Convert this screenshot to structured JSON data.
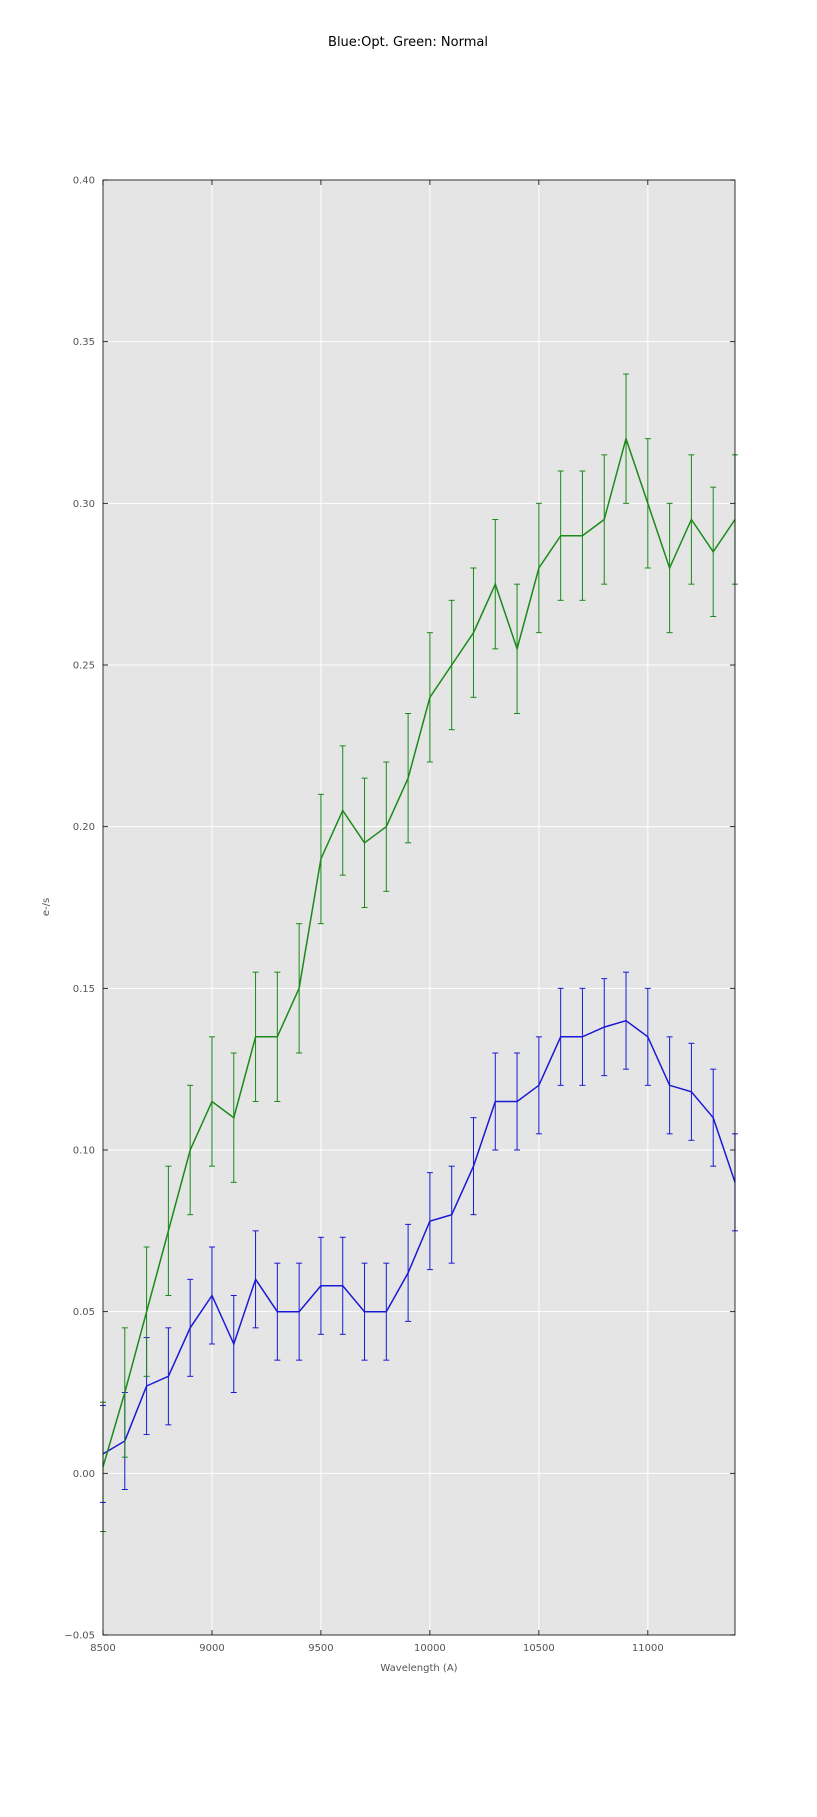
{
  "chart_data": {
    "type": "line",
    "title": "Blue:Opt. Green: Normal",
    "xlabel": "Wavelength (A)",
    "ylabel": "e-/s",
    "xlim": [
      8500,
      11400
    ],
    "ylim": [
      -0.05,
      0.4
    ],
    "xticks": [
      8500,
      9000,
      9500,
      10000,
      10500,
      11000
    ],
    "yticks": [
      "−0.05",
      "0.00",
      "0.05",
      "0.10",
      "0.15",
      "0.20",
      "0.25",
      "0.30",
      "0.35",
      "0.40"
    ],
    "ytick_values": [
      -0.05,
      0.0,
      0.05,
      0.1,
      0.15,
      0.2,
      0.25,
      0.3,
      0.35,
      0.4
    ],
    "grid": true,
    "error_bars": true,
    "background": "#e5e5e5",
    "grid_color": "#ffffff",
    "series": [
      {
        "color": "#1a1ad6",
        "x": [
          8500,
          8600,
          8700,
          8800,
          8900,
          9000,
          9100,
          9200,
          9300,
          9400,
          9500,
          9600,
          9700,
          9800,
          9900,
          10000,
          10100,
          10200,
          10300,
          10400,
          10500,
          10600,
          10700,
          10800,
          10900,
          11000,
          11100,
          11200,
          11300,
          11400
        ],
        "y": [
          0.006,
          0.01,
          0.027,
          0.03,
          0.045,
          0.055,
          0.04,
          0.06,
          0.05,
          0.05,
          0.058,
          0.058,
          0.05,
          0.05,
          0.062,
          0.078,
          0.08,
          0.095,
          0.115,
          0.115,
          0.12,
          0.135,
          0.135,
          0.138,
          0.14,
          0.135,
          0.12,
          0.118,
          0.11,
          0.09
        ],
        "err": [
          0.015,
          0.015,
          0.015,
          0.015,
          0.015,
          0.015,
          0.015,
          0.015,
          0.015,
          0.015,
          0.015,
          0.015,
          0.015,
          0.015,
          0.015,
          0.015,
          0.015,
          0.015,
          0.015,
          0.015,
          0.015,
          0.015,
          0.015,
          0.015,
          0.015,
          0.015,
          0.015,
          0.015,
          0.015,
          0.015
        ]
      },
      {
        "color": "#1a8a1a",
        "x": [
          8500,
          8600,
          8700,
          8800,
          8900,
          9000,
          9100,
          9200,
          9300,
          9400,
          9500,
          9600,
          9700,
          9800,
          9900,
          10000,
          10100,
          10200,
          10300,
          10400,
          10500,
          10600,
          10700,
          10800,
          10900,
          11000,
          11100,
          11200,
          11300,
          11400
        ],
        "y": [
          0.002,
          0.025,
          0.05,
          0.075,
          0.1,
          0.115,
          0.11,
          0.135,
          0.135,
          0.15,
          0.19,
          0.205,
          0.195,
          0.2,
          0.215,
          0.24,
          0.25,
          0.26,
          0.275,
          0.255,
          0.28,
          0.29,
          0.29,
          0.295,
          0.32,
          0.3,
          0.28,
          0.295,
          0.285,
          0.295
        ],
        "err": [
          0.02,
          0.02,
          0.02,
          0.02,
          0.02,
          0.02,
          0.02,
          0.02,
          0.02,
          0.02,
          0.02,
          0.02,
          0.02,
          0.02,
          0.02,
          0.02,
          0.02,
          0.02,
          0.02,
          0.02,
          0.02,
          0.02,
          0.02,
          0.02,
          0.02,
          0.02,
          0.02,
          0.02,
          0.02,
          0.02
        ]
      }
    ]
  }
}
